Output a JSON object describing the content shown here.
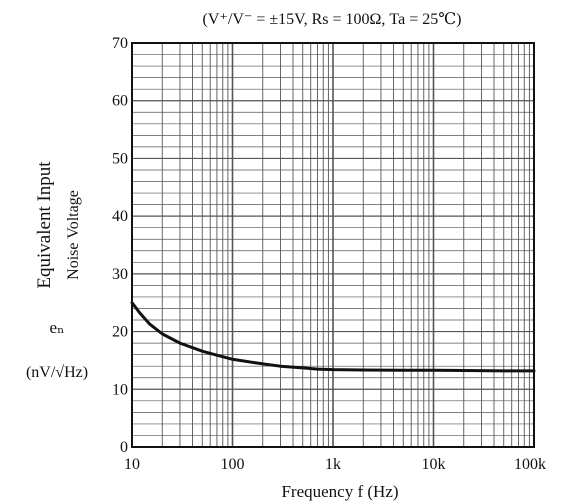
{
  "chart_data": {
    "type": "line",
    "title": "(V⁺/V⁻ = ±15V,  Rs = 100Ω,  Ta = 25℃)",
    "xlabel": "Frequency   f (Hz)",
    "ylabel_line1": "Equivalent Input",
    "ylabel_line2": "Noise Voltage",
    "ylabel_symbol": "eₙ",
    "ylabel_unit": "(nV/√Hz)",
    "x_scale": "log",
    "xlim": [
      10,
      100000
    ],
    "ylim": [
      0,
      70
    ],
    "grid": true,
    "x_ticks": [
      {
        "value": 10,
        "label": "10"
      },
      {
        "value": 100,
        "label": "100"
      },
      {
        "value": 1000,
        "label": "1k"
      },
      {
        "value": 10000,
        "label": "10k"
      },
      {
        "value": 100000,
        "label": "100k"
      }
    ],
    "y_ticks": [
      {
        "value": 0,
        "label": "0"
      },
      {
        "value": 10,
        "label": "10"
      },
      {
        "value": 20,
        "label": "20"
      },
      {
        "value": 30,
        "label": "30"
      },
      {
        "value": 40,
        "label": "40"
      },
      {
        "value": 50,
        "label": "50"
      },
      {
        "value": 60,
        "label": "60"
      },
      {
        "value": 70,
        "label": "70"
      }
    ],
    "series": [
      {
        "x": [
          10,
          12,
          15,
          20,
          30,
          50,
          70,
          100,
          200,
          300,
          500,
          700,
          1000,
          2000,
          5000,
          10000,
          20000,
          50000,
          100000
        ],
        "y": [
          25,
          23.2,
          21.3,
          19.6,
          18,
          16.6,
          15.9,
          15.2,
          14.4,
          14,
          13.7,
          13.5,
          13.4,
          13.35,
          13.3,
          13.3,
          13.25,
          13.2,
          13.2
        ]
      }
    ],
    "colors": {
      "line": "#111111",
      "grid": "#555555",
      "axis": "#111111"
    }
  }
}
